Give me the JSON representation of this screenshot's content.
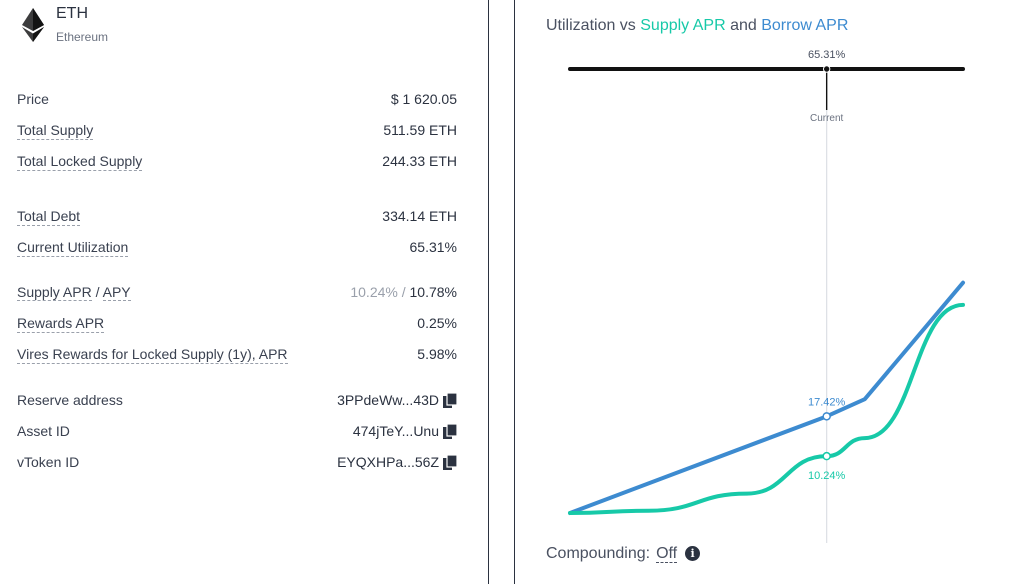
{
  "asset": {
    "symbol": "ETH",
    "name": "Ethereum",
    "icon": "ethereum-logo"
  },
  "stats": {
    "price_label": "Price",
    "price_value": "$ 1 620.05",
    "total_supply_label": "Total Supply",
    "total_supply_value": "511.59 ETH",
    "total_locked_label": "Total Locked Supply",
    "total_locked_value": "244.33 ETH",
    "total_debt_label": "Total Debt",
    "total_debt_value": "334.14 ETH",
    "utilization_label": "Current Utilization",
    "utilization_value": "65.31%",
    "supply_apr_label": "Supply APR",
    "slash": "/",
    "apy_label": "APY",
    "supply_apr_value": "10.24%",
    "slash_value": "/",
    "apy_value": "10.78%",
    "rewards_apr_label": "Rewards APR",
    "rewards_apr_value": "0.25%",
    "vires_rewards_label": "Vires Rewards for Locked Supply (1y), APR",
    "vires_rewards_value": "5.98%",
    "reserve_address_label": "Reserve address",
    "reserve_address_value": "3PPdeWw...43D",
    "asset_id_label": "Asset ID",
    "asset_id_value": "474jTeY...Unu",
    "vtoken_id_label": "vToken ID",
    "vtoken_id_value": "EYQXHPa...56Z",
    "copy_icon": "copy-icon"
  },
  "chart": {
    "title_prefix": "Utilization vs ",
    "title_supply": "Supply APR",
    "title_mid": " and ",
    "title_borrow": "Borrow APR",
    "marker_value": "65.31%",
    "marker_label": "Current",
    "borrow_label": "17.42%",
    "supply_label": "10.24%",
    "colors": {
      "supply": "#17c9a8",
      "borrow": "#3d8bd0",
      "axis": "#111111"
    }
  },
  "chart_data": {
    "type": "line",
    "title": "Utilization vs Supply APR and Borrow APR",
    "xlabel": "",
    "ylabel": "",
    "current_utilization": 65.31,
    "series": [
      {
        "name": "Borrow APR",
        "x": [
          0,
          65.31,
          75,
          100
        ],
        "values": [
          0,
          17.42,
          20.5,
          41.5
        ]
      },
      {
        "name": "Supply APR",
        "x": [
          0,
          20,
          45,
          65.31,
          75,
          100
        ],
        "values": [
          0,
          0.4,
          3.5,
          10.24,
          13.5,
          37.5
        ]
      }
    ]
  },
  "footer": {
    "compounding_label": "Compounding:",
    "compounding_value": "Off",
    "info_icon": "info-icon"
  }
}
